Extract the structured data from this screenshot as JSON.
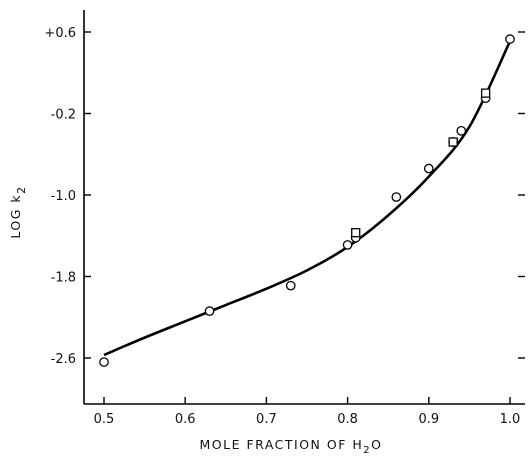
{
  "chart_data": {
    "type": "scatter",
    "title": "",
    "xlabel_main": "MOLE FRACTION OF H",
    "xlabel_sub": "2",
    "xlabel_tail": "O",
    "ylabel_main": "LOG  k",
    "ylabel_sub": "2",
    "xlim": [
      0.5,
      1.0
    ],
    "ylim": [
      -2.6,
      0.6
    ],
    "x_ticks": [
      0.5,
      0.6,
      0.7,
      0.8,
      0.9,
      1.0
    ],
    "x_tick_labels": [
      "0.5",
      "0.6",
      "0.7",
      "0.8",
      "0.9",
      "1.0"
    ],
    "y_ticks": [
      0.6,
      -0.2,
      -1.0,
      -1.8,
      -2.6
    ],
    "y_tick_labels": [
      "+0.6",
      "-0.2",
      "-1.0",
      "-1.8",
      "-2.6"
    ],
    "grid": false,
    "series": [
      {
        "marker": "circle",
        "x": [
          0.5,
          0.63,
          0.73,
          0.8,
          0.81,
          0.86,
          0.9,
          0.93,
          0.94,
          0.97,
          1.0
        ],
        "y": [
          -2.64,
          -2.14,
          -1.89,
          -1.49,
          -1.42,
          -1.02,
          -0.74,
          -0.48,
          -0.37,
          -0.05,
          0.53
        ]
      },
      {
        "marker": "square",
        "x": [
          0.81,
          0.93,
          0.97
        ],
        "y": [
          -1.37,
          -0.48,
          0.0
        ]
      }
    ],
    "fit_curve": {
      "x": [
        0.5,
        0.55,
        0.6,
        0.65,
        0.7,
        0.75,
        0.8,
        0.85,
        0.9,
        0.95,
        1.0
      ],
      "y": [
        -2.57,
        -2.4,
        -2.24,
        -2.08,
        -1.92,
        -1.74,
        -1.51,
        -1.2,
        -0.82,
        -0.33,
        0.51
      ]
    }
  }
}
